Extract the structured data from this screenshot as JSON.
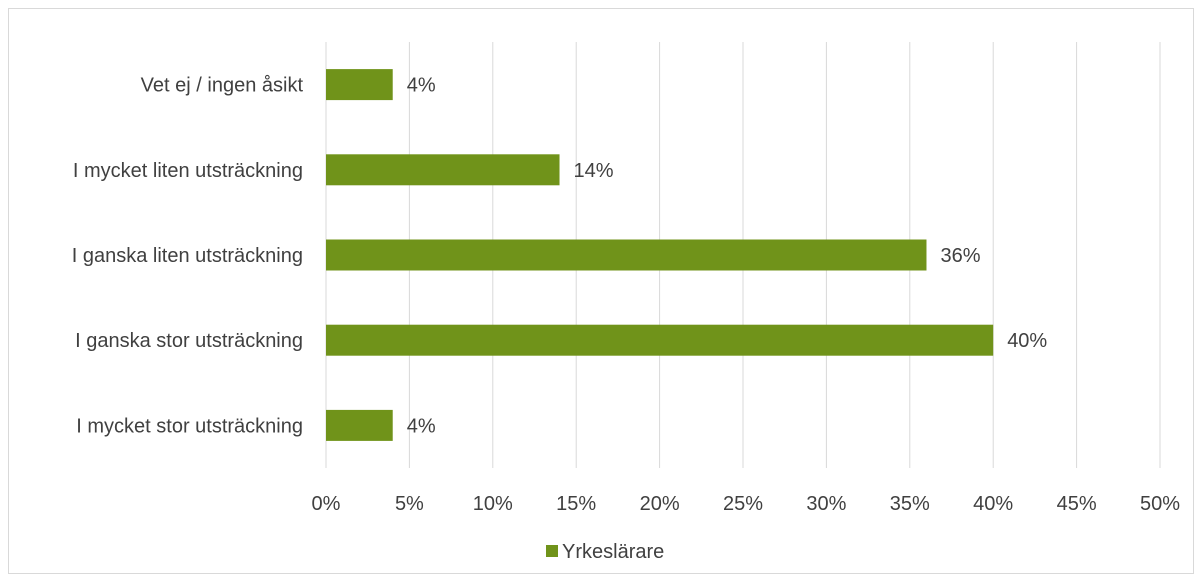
{
  "chart_data": {
    "type": "bar",
    "orientation": "horizontal",
    "title": "",
    "xlabel": "",
    "ylabel": "",
    "categories": [
      "Vet ej / ingen åsikt",
      "I mycket liten utsträckning",
      "I ganska liten utsträckning",
      "I ganska stor utsträckning",
      "I mycket stor utsträckning"
    ],
    "series": [
      {
        "name": "Yrkeslärare",
        "values": [
          4,
          14,
          36,
          40,
          4
        ],
        "labels": [
          "4%",
          "14%",
          "36%",
          "40%",
          "4%"
        ]
      }
    ],
    "xlim": [
      0,
      50
    ],
    "xticks": [
      0,
      5,
      10,
      15,
      20,
      25,
      30,
      35,
      40,
      45,
      50
    ],
    "xtick_labels": [
      "0%",
      "5%",
      "10%",
      "15%",
      "20%",
      "25%",
      "30%",
      "35%",
      "40%",
      "45%",
      "50%"
    ],
    "grid": "vertical",
    "legend": "bottom",
    "colors": {
      "bar": "#70931a",
      "grid": "#d9d9d9",
      "text": "#404040"
    }
  }
}
